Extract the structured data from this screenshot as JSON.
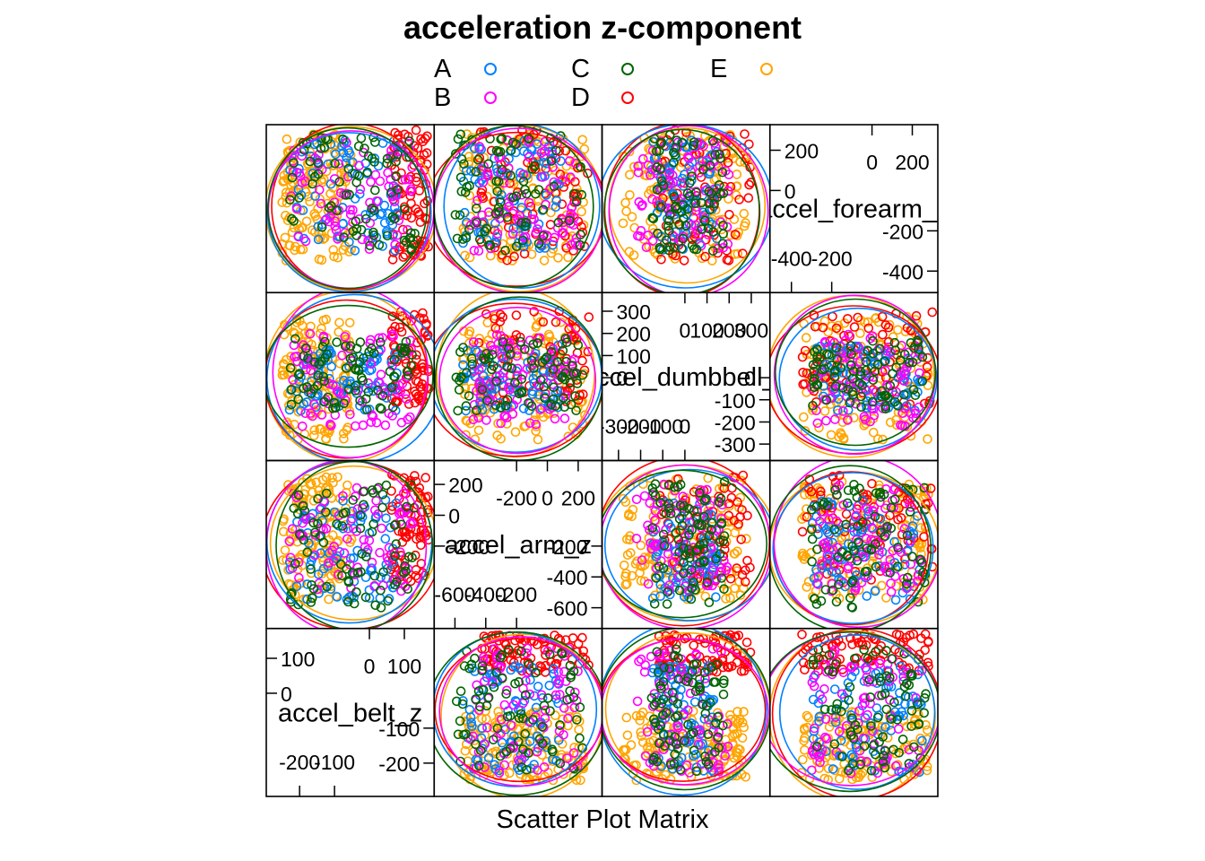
{
  "chart_data": {
    "type": "scatter",
    "subtype": "scatter-plot-matrix",
    "title": "acceleration z-component",
    "xlabel": "Scatter Plot Matrix",
    "ylabel": "",
    "legend": {
      "placement": "top",
      "entries": [
        {
          "name": "A",
          "color": "#0080ff"
        },
        {
          "name": "B",
          "color": "#ff00ff"
        },
        {
          "name": "C",
          "color": "#006400"
        },
        {
          "name": "D",
          "color": "#ff0000"
        },
        {
          "name": "E",
          "color": "#ffa500"
        }
      ]
    },
    "variables": [
      {
        "name": "accel_belt_z",
        "range": [
          -280,
          170
        ],
        "ticks_low": [
          {
            "v": -200,
            "label": "-200"
          },
          {
            "v": -100,
            "label": "-100"
          }
        ],
        "ticks_high": [
          {
            "v": 0,
            "label": "0"
          },
          {
            "v": 100,
            "label": "100"
          }
        ]
      },
      {
        "name": "accel_arm_z",
        "range": [
          -700,
          320
        ],
        "ticks_low": [
          {
            "v": -600,
            "label": "-600"
          },
          {
            "v": -400,
            "label": "-400"
          },
          {
            "v": -200,
            "label": "-200"
          }
        ],
        "ticks_high": [
          {
            "v": -200,
            "label": "-200"
          },
          {
            "v": 0,
            "label": "0"
          },
          {
            "v": 200,
            "label": "200"
          }
        ]
      },
      {
        "name": "accel_dumbbell_z",
        "range": [
          -350,
          360
        ],
        "ticks_low": [
          {
            "v": -300,
            "label": "-300"
          },
          {
            "v": -200,
            "label": "-200"
          },
          {
            "v": -100,
            "label": "-100"
          },
          {
            "v": 0,
            "label": "0"
          }
        ],
        "ticks_high": [
          {
            "v": 0,
            "label": "0"
          },
          {
            "v": 100,
            "label": "100"
          },
          {
            "v": 200,
            "label": "200"
          },
          {
            "v": 300,
            "label": "300"
          }
        ]
      },
      {
        "name": "accel_forearm_z",
        "range": [
          -480,
          300
        ],
        "ticks_low": [
          {
            "v": -400,
            "label": "-400"
          },
          {
            "v": -200,
            "label": "-200"
          }
        ],
        "ticks_high": [
          {
            "v": 0,
            "label": "0"
          },
          {
            "v": 200,
            "label": "200"
          }
        ]
      }
    ],
    "clusters": [
      {
        "class": "E",
        "belt": [
          -250,
          -50
        ],
        "arm": [
          -550,
          250
        ],
        "dumbbell": [
          -280,
          280
        ],
        "forearm": [
          -350,
          280
        ]
      },
      {
        "class": "D",
        "belt": [
          60,
          170
        ],
        "arm": [
          -450,
          270
        ],
        "dumbbell": [
          -120,
          300
        ],
        "forearm": [
          -350,
          300
        ]
      },
      {
        "class": "A",
        "belt": [
          -230,
          80
        ],
        "arm": [
          -550,
          100
        ],
        "dumbbell": [
          -150,
          150
        ],
        "forearm": [
          -300,
          250
        ]
      },
      {
        "class": "B",
        "belt": [
          -230,
          130
        ],
        "arm": [
          -500,
          200
        ],
        "dumbbell": [
          -220,
          200
        ],
        "forearm": [
          -300,
          250
        ]
      },
      {
        "class": "C",
        "belt": [
          -230,
          130
        ],
        "arm": [
          -600,
          230
        ],
        "dumbbell": [
          -150,
          180
        ],
        "forearm": [
          -300,
          280
        ]
      }
    ],
    "grid": false
  }
}
